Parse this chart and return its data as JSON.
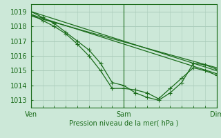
{
  "xlabel": "Pression niveau de la mer( hPa )",
  "background_color": "#cce8d8",
  "grid_color": "#aaccbb",
  "line_color": "#1a6b1a",
  "ylim": [
    1012.5,
    1019.5
  ],
  "xlim": [
    0,
    48
  ],
  "xticks": [
    0,
    24,
    48
  ],
  "xticklabels": [
    "Ven",
    "Sam",
    "Dim"
  ],
  "yticks": [
    1013,
    1014,
    1015,
    1016,
    1017,
    1018,
    1019
  ],
  "smooth1": {
    "x": [
      0,
      48
    ],
    "y": [
      1019.0,
      1015.0
    ]
  },
  "smooth2": {
    "x": [
      0,
      48
    ],
    "y": [
      1018.8,
      1014.8
    ]
  },
  "smooth3": {
    "x": [
      0,
      48
    ],
    "y": [
      1018.7,
      1015.2
    ]
  },
  "jagged1": {
    "x": [
      0,
      3,
      6,
      9,
      12,
      15,
      18,
      21,
      24,
      27,
      30,
      33,
      36,
      39,
      42,
      45,
      48
    ],
    "y": [
      1019.0,
      1018.6,
      1018.2,
      1017.6,
      1017.0,
      1016.4,
      1015.5,
      1014.2,
      1014.0,
      1013.5,
      1013.2,
      1013.0,
      1013.5,
      1014.2,
      1015.5,
      1015.4,
      1015.1
    ]
  },
  "jagged2": {
    "x": [
      0,
      3,
      6,
      9,
      12,
      15,
      18,
      21,
      24,
      27,
      30,
      33,
      36,
      39,
      42,
      45,
      48
    ],
    "y": [
      1018.8,
      1018.4,
      1018.0,
      1017.5,
      1016.8,
      1016.0,
      1015.0,
      1013.8,
      1013.8,
      1013.7,
      1013.5,
      1013.1,
      1013.8,
      1014.5,
      1015.2,
      1015.0,
      1014.7
    ]
  }
}
